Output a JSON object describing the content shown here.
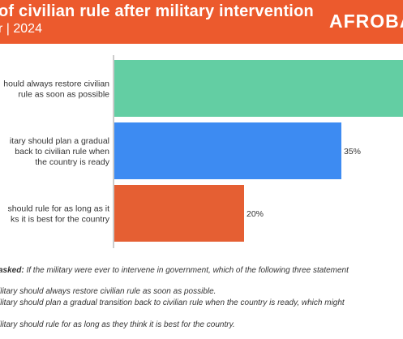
{
  "header": {
    "title": "of civilian rule after military intervention",
    "subtitle": "r | 2024",
    "logo": "AFROBA"
  },
  "chart_data": {
    "type": "bar",
    "orientation": "horizontal",
    "categories": [
      [
        "hould always restore civilian",
        "rule as soon as possible"
      ],
      [
        "itary should plan a gradual",
        "back to civilian rule when",
        "the country is ready"
      ],
      [
        "should rule for as long as it",
        "ks it is best for the country"
      ]
    ],
    "values": [
      45,
      35,
      20
    ],
    "data_labels": [
      "",
      "35%",
      "20%"
    ],
    "colors": [
      "#63cea3",
      "#3d8bf2",
      "#e55f33"
    ],
    "xlim": [
      0,
      45
    ]
  },
  "footnote": {
    "question_label": "asked:",
    "question_text": "If the military were ever to intervene in government, which of the following three statement",
    "option1": "ilitary should always restore civilian rule as soon as possible.",
    "option2": "ilitary should plan a gradual transition back to civilian rule when the country is ready, which might",
    "option3": "ilitary should rule for as long as they think it is best for the country."
  }
}
